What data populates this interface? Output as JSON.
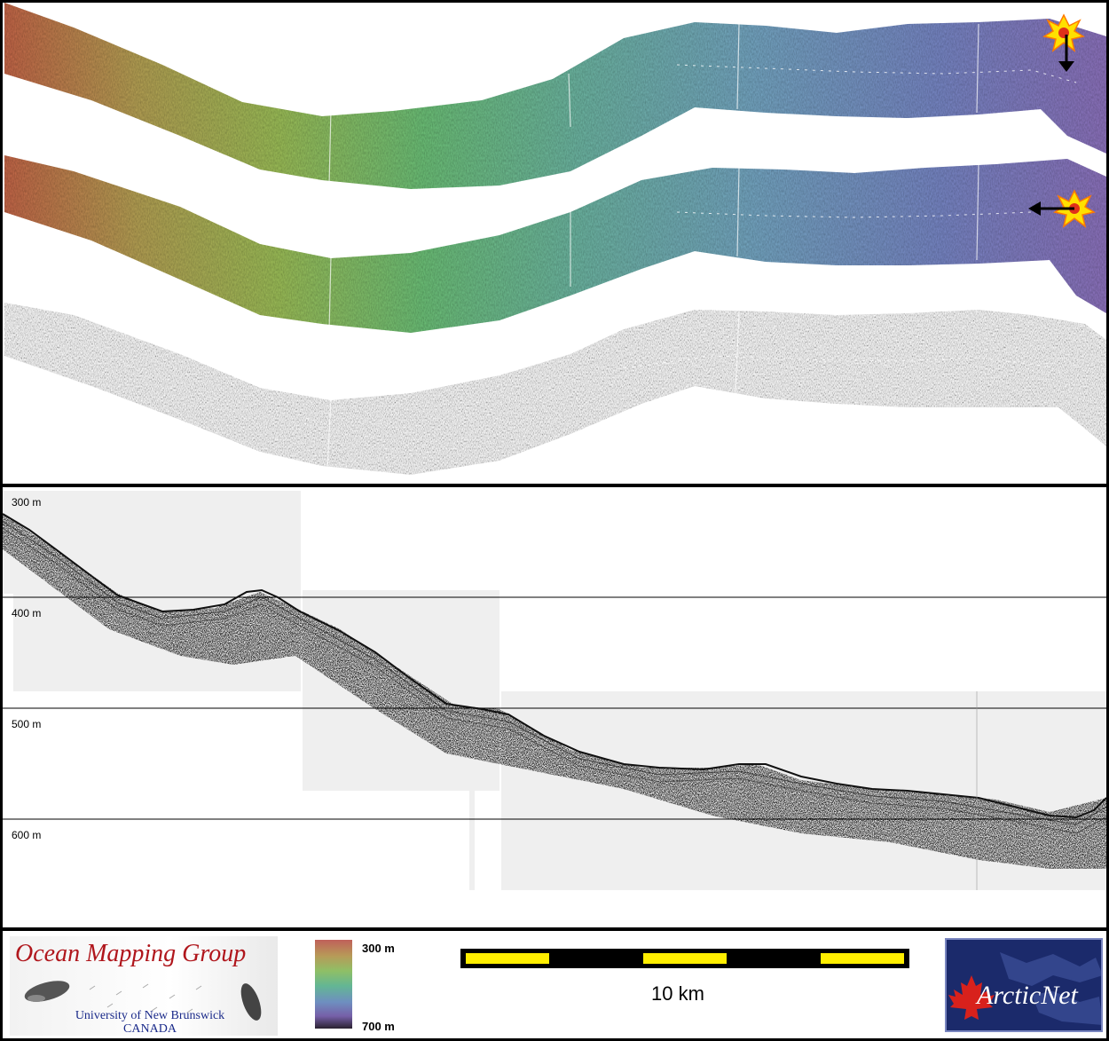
{
  "profile": {
    "depth_labels": [
      "300 m",
      "400 m",
      "500 m",
      "600 m"
    ]
  },
  "legend": {
    "ocean_mapping": {
      "title": "Ocean Mapping Group",
      "university": "University of New Brunswick",
      "country": "CANADA"
    },
    "colorbar": {
      "top_label": "300 m",
      "bottom_label": "700 m"
    },
    "scale_bar": {
      "label": "10 km"
    },
    "arcticnet": {
      "logo_text": "ArcticNet"
    }
  },
  "colors": {
    "scale_yellow": "#ffee00",
    "ocean_mapping_red": "#b0161c",
    "arcticnet_bg": "#1b2a6b",
    "marker_orange": "#ff9a00"
  },
  "markers": [
    {
      "icon": "explosion-marker-icon",
      "arrow": "down"
    },
    {
      "icon": "explosion-marker-icon",
      "arrow": "left"
    }
  ]
}
